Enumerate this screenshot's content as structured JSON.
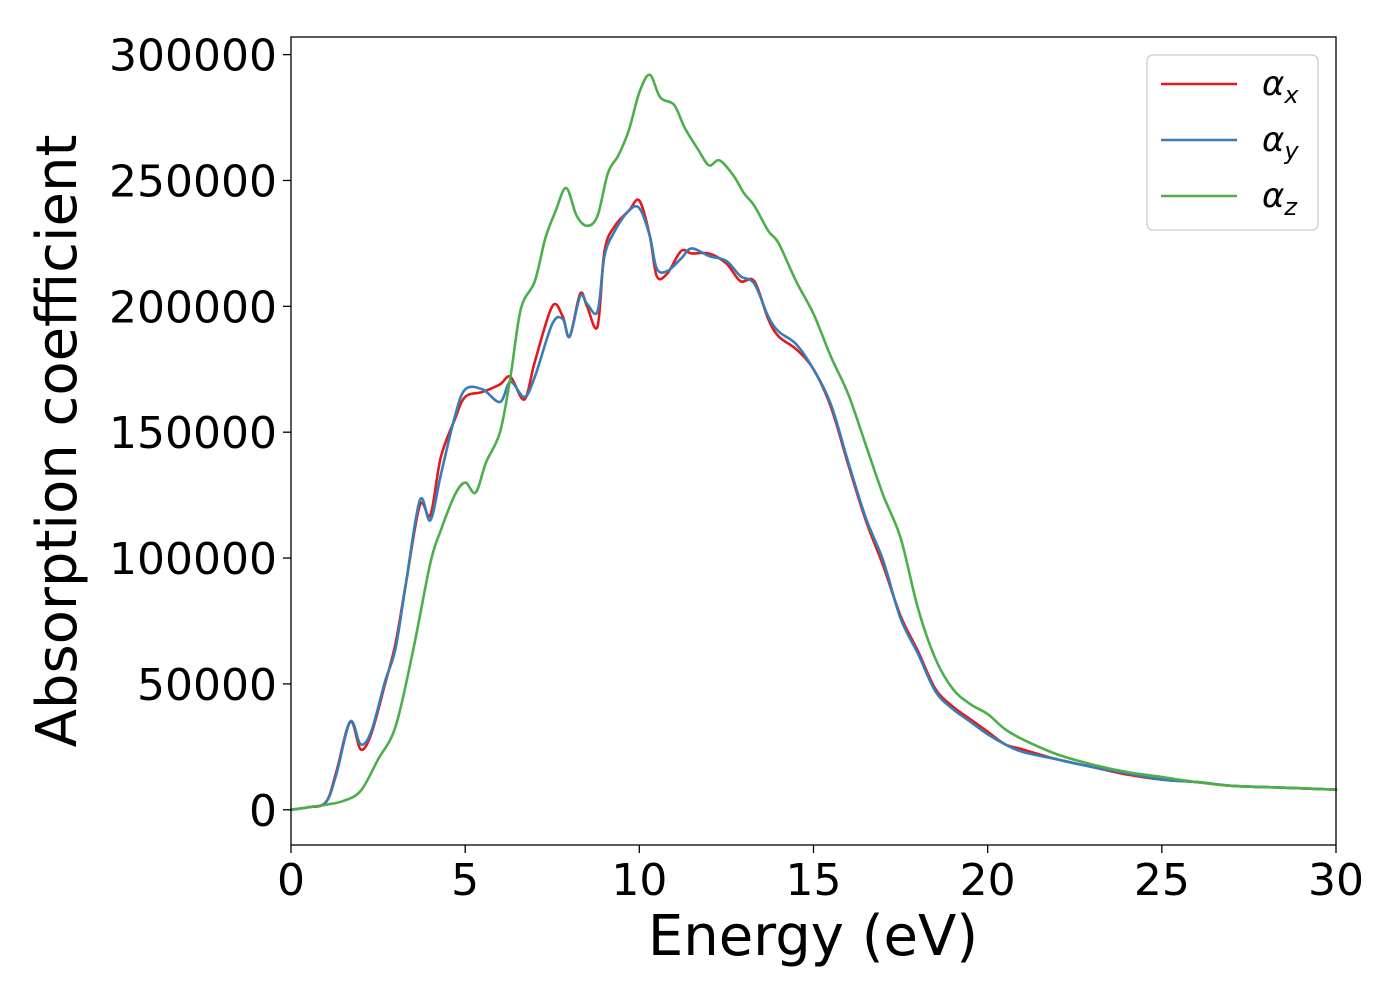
{
  "chart_data": {
    "type": "line",
    "title": "",
    "xlabel": "Energy (eV)",
    "ylabel": "Absorption coefficient",
    "xlim": [
      0,
      30
    ],
    "ylim": [
      -14000,
      307000
    ],
    "xticks": [
      0,
      5,
      10,
      15,
      20,
      25,
      30
    ],
    "yticks": [
      0,
      50000,
      100000,
      150000,
      200000,
      250000,
      300000
    ],
    "grid": false,
    "legend_position": "top-right",
    "series": [
      {
        "name": "αx",
        "symbol": "α",
        "subscript": "x",
        "color": "#e41a1c",
        "x": [
          0,
          0.5,
          1,
          1.3,
          1.7,
          2,
          2.3,
          2.7,
          3,
          3.3,
          3.7,
          4,
          4.3,
          4.7,
          5,
          5.5,
          6,
          6.3,
          6.7,
          7,
          7.5,
          7.8,
          8,
          8.3,
          8.5,
          8.8,
          9,
          9.3,
          9.7,
          10,
          10.3,
          10.5,
          10.8,
          11.2,
          11.5,
          12,
          12.5,
          12.9,
          13.3,
          13.7,
          14,
          14.5,
          15,
          15.5,
          16,
          16.5,
          17,
          17.5,
          18,
          18.5,
          19,
          19.5,
          20,
          20.5,
          21,
          22,
          23,
          24,
          25,
          26,
          27,
          28,
          29,
          30
        ],
        "y": [
          0,
          1000,
          3000,
          15000,
          35000,
          24000,
          30000,
          50000,
          66000,
          90000,
          121000,
          117000,
          140000,
          155000,
          164000,
          166000,
          169000,
          172000,
          163000,
          178000,
          200000,
          196000,
          188000,
          205000,
          200000,
          192000,
          222000,
          232000,
          238000,
          242000,
          228000,
          212000,
          213000,
          222000,
          221000,
          221000,
          217000,
          210000,
          210000,
          195000,
          188000,
          183000,
          175000,
          160000,
          137000,
          115000,
          97000,
          77000,
          63000,
          48000,
          41000,
          36000,
          31000,
          26000,
          24000,
          20000,
          17000,
          14000,
          12000,
          11000,
          9500,
          9000,
          8500,
          8000
        ]
      },
      {
        "name": "αy",
        "symbol": "α",
        "subscript": "y",
        "color": "#377eb8",
        "x": [
          0,
          0.5,
          1,
          1.3,
          1.7,
          2,
          2.3,
          2.7,
          3,
          3.3,
          3.7,
          4,
          4.3,
          4.7,
          5,
          5.5,
          6,
          6.3,
          6.7,
          7,
          7.5,
          7.8,
          8,
          8.3,
          8.5,
          8.8,
          9,
          9.3,
          9.7,
          10,
          10.3,
          10.5,
          10.8,
          11.2,
          11.5,
          12,
          12.5,
          12.9,
          13.3,
          13.7,
          14,
          14.5,
          15,
          15.5,
          16,
          16.5,
          17,
          17.5,
          18,
          18.5,
          19,
          19.5,
          20,
          20.5,
          21,
          22,
          23,
          24,
          25,
          26,
          27,
          28,
          29,
          30
        ],
        "y": [
          0,
          1000,
          3000,
          14000,
          35000,
          26000,
          31000,
          51000,
          64000,
          90000,
          123000,
          115000,
          133000,
          156000,
          167000,
          167000,
          162000,
          170000,
          164000,
          172000,
          193000,
          195000,
          188000,
          204000,
          201000,
          198000,
          220000,
          230000,
          238000,
          239000,
          228000,
          215000,
          214000,
          219000,
          223000,
          220000,
          218000,
          212000,
          209000,
          196000,
          190000,
          185000,
          175000,
          161000,
          138000,
          116000,
          99000,
          76000,
          62000,
          47000,
          40000,
          35000,
          30000,
          26000,
          23000,
          20000,
          17000,
          14500,
          12000,
          11000,
          9500,
          9000,
          8500,
          8000
        ]
      },
      {
        "name": "αz",
        "symbol": "α",
        "subscript": "z",
        "color": "#4daf4a",
        "x": [
          0,
          0.5,
          1,
          1.5,
          2,
          2.5,
          3,
          3.5,
          4,
          4.3,
          4.7,
          5,
          5.3,
          5.6,
          6,
          6.3,
          6.6,
          7,
          7.3,
          7.6,
          7.9,
          8.2,
          8.5,
          8.8,
          9.1,
          9.4,
          9.7,
          10,
          10.3,
          10.6,
          11,
          11.3,
          11.7,
          12,
          12.3,
          12.7,
          13,
          13.3,
          13.7,
          14,
          14.5,
          15,
          15.5,
          16,
          16.5,
          17,
          17.5,
          18,
          18.5,
          19,
          19.5,
          20,
          20.5,
          21,
          22,
          23,
          24,
          25,
          26,
          27,
          28,
          29,
          30
        ],
        "y": [
          0,
          1000,
          2000,
          3500,
          7500,
          20000,
          33000,
          63000,
          98000,
          111000,
          125000,
          130000,
          126000,
          138000,
          150000,
          172000,
          199000,
          210000,
          227000,
          238000,
          247000,
          236000,
          232000,
          236000,
          253000,
          260000,
          270000,
          285000,
          292000,
          283000,
          280000,
          271000,
          262000,
          256000,
          258000,
          252000,
          245000,
          240000,
          230000,
          225000,
          210000,
          197000,
          180000,
          165000,
          145000,
          125000,
          108000,
          80000,
          60000,
          48000,
          42000,
          38000,
          32000,
          28000,
          22000,
          18000,
          15000,
          13000,
          11000,
          9500,
          9000,
          8500,
          8000
        ]
      }
    ]
  }
}
